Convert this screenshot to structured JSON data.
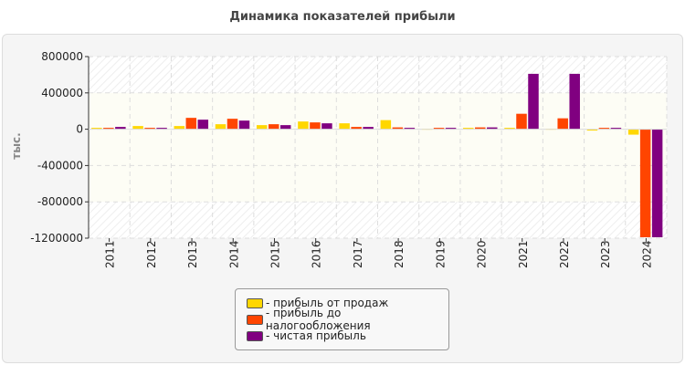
{
  "chart_data": {
    "type": "bar",
    "title": "Динамика показателей прибыли",
    "ylabel": "тыс.",
    "xlabel": "",
    "categories": [
      "2011",
      "2012",
      "2013",
      "2014",
      "2015",
      "2016",
      "2017",
      "2018",
      "2019",
      "2020",
      "2021",
      "2022",
      "2023",
      "2024"
    ],
    "ylim": [
      -1200000,
      800000
    ],
    "yticks": [
      800000,
      400000,
      0,
      -400000,
      -800000,
      -1200000
    ],
    "yticklabels": [
      "800000",
      "400000",
      "0",
      "-400000",
      "-800000",
      "-1200000"
    ],
    "grid": true,
    "legend_position": "bottom",
    "series": [
      {
        "name": "- прибыль от продаж",
        "color": "#ffd700",
        "values": [
          15000,
          35000,
          35000,
          55000,
          45000,
          85000,
          65000,
          100000,
          5000,
          15000,
          15000,
          5000,
          -15000,
          -60000
        ]
      },
      {
        "name": "- прибыль до налогообложения",
        "color": "#ff4500",
        "values": [
          15000,
          15000,
          125000,
          115000,
          55000,
          75000,
          25000,
          20000,
          15000,
          20000,
          170000,
          120000,
          15000,
          -1190000
        ]
      },
      {
        "name": "- чистая прибыль",
        "color": "#800080",
        "values": [
          25000,
          15000,
          105000,
          95000,
          45000,
          65000,
          25000,
          15000,
          15000,
          20000,
          610000,
          610000,
          15000,
          -1190000
        ]
      }
    ]
  }
}
